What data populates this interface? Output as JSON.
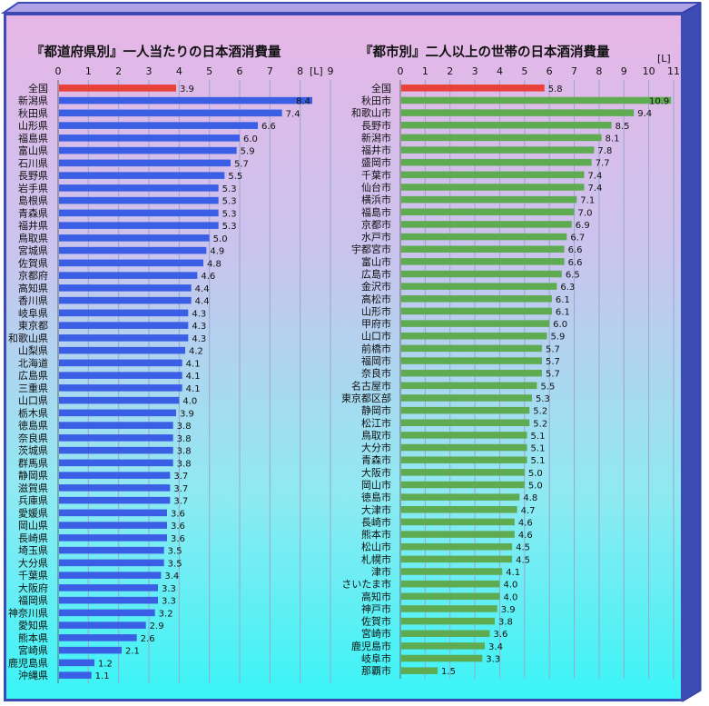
{
  "chart_data": [
    {
      "type": "bar",
      "orientation": "horizontal",
      "title": "『都道府県別』一人当たりの日本酒消費量",
      "unit_label": "[L]",
      "xlim": [
        0,
        9
      ],
      "ticks": [
        0,
        1,
        2,
        3,
        4,
        5,
        6,
        7,
        8,
        9
      ],
      "grid": true,
      "highlight_color": "#e8413a",
      "bar_color": "#3a5fe4",
      "categories": [
        "全国",
        "新潟県",
        "秋田県",
        "山形県",
        "福島県",
        "富山県",
        "石川県",
        "長野県",
        "岩手県",
        "島根県",
        "青森県",
        "福井県",
        "鳥取県",
        "宮城県",
        "佐賀県",
        "京都府",
        "高知県",
        "香川県",
        "岐阜県",
        "東京都",
        "和歌山県",
        "山梨県",
        "北海道",
        "広島県",
        "三重県",
        "山口県",
        "栃木県",
        "徳島県",
        "奈良県",
        "茨城県",
        "群馬県",
        "静岡県",
        "滋賀県",
        "兵庫県",
        "愛媛県",
        "岡山県",
        "長崎県",
        "埼玉県",
        "大分県",
        "千葉県",
        "大阪府",
        "福岡県",
        "神奈川県",
        "愛知県",
        "熊本県",
        "宮崎県",
        "鹿児島県",
        "沖縄県"
      ],
      "values": [
        3.9,
        8.4,
        7.4,
        6.6,
        6.0,
        5.9,
        5.7,
        5.5,
        5.3,
        5.3,
        5.3,
        5.3,
        5.0,
        4.9,
        4.8,
        4.6,
        4.4,
        4.4,
        4.3,
        4.3,
        4.3,
        4.2,
        4.1,
        4.1,
        4.1,
        4.0,
        3.9,
        3.8,
        3.8,
        3.8,
        3.8,
        3.7,
        3.7,
        3.7,
        3.6,
        3.6,
        3.6,
        3.5,
        3.5,
        3.4,
        3.3,
        3.3,
        3.2,
        2.9,
        2.6,
        2.1,
        1.2,
        1.1
      ]
    },
    {
      "type": "bar",
      "orientation": "horizontal",
      "title": "『都市別』二人以上の世帯の日本酒消費量",
      "unit_label": "[L]",
      "xlim": [
        0,
        11
      ],
      "ticks": [
        0,
        1,
        2,
        3,
        4,
        5,
        6,
        7,
        8,
        9,
        10,
        11
      ],
      "grid": true,
      "highlight_color": "#e8413a",
      "bar_color": "#5fab52",
      "categories": [
        "全国",
        "秋田市",
        "和歌山市",
        "長野市",
        "新潟市",
        "福井市",
        "盛岡市",
        "千葉市",
        "仙台市",
        "横浜市",
        "福島市",
        "京都市",
        "水戸市",
        "宇都宮市",
        "富山市",
        "広島市",
        "金沢市",
        "高松市",
        "山形市",
        "甲府市",
        "山口市",
        "前橋市",
        "福岡市",
        "奈良市",
        "名古屋市",
        "東京都区部",
        "静岡市",
        "松江市",
        "鳥取市",
        "大分市",
        "青森市",
        "大阪市",
        "岡山市",
        "徳島市",
        "大津市",
        "長崎市",
        "熊本市",
        "松山市",
        "札幌市",
        "津市",
        "さいたま市",
        "高知市",
        "神戸市",
        "佐賀市",
        "宮崎市",
        "鹿児島市",
        "岐阜市",
        "那覇市"
      ],
      "values": [
        5.8,
        10.9,
        9.4,
        8.5,
        8.1,
        7.8,
        7.7,
        7.4,
        7.4,
        7.1,
        7.0,
        6.9,
        6.7,
        6.6,
        6.6,
        6.5,
        6.3,
        6.1,
        6.1,
        6.0,
        5.9,
        5.7,
        5.7,
        5.7,
        5.5,
        5.3,
        5.2,
        5.2,
        5.1,
        5.1,
        5.1,
        5.0,
        5.0,
        4.8,
        4.7,
        4.6,
        4.6,
        4.5,
        4.5,
        4.1,
        4.0,
        4.0,
        3.9,
        3.8,
        3.6,
        3.4,
        3.3,
        1.5
      ]
    }
  ]
}
